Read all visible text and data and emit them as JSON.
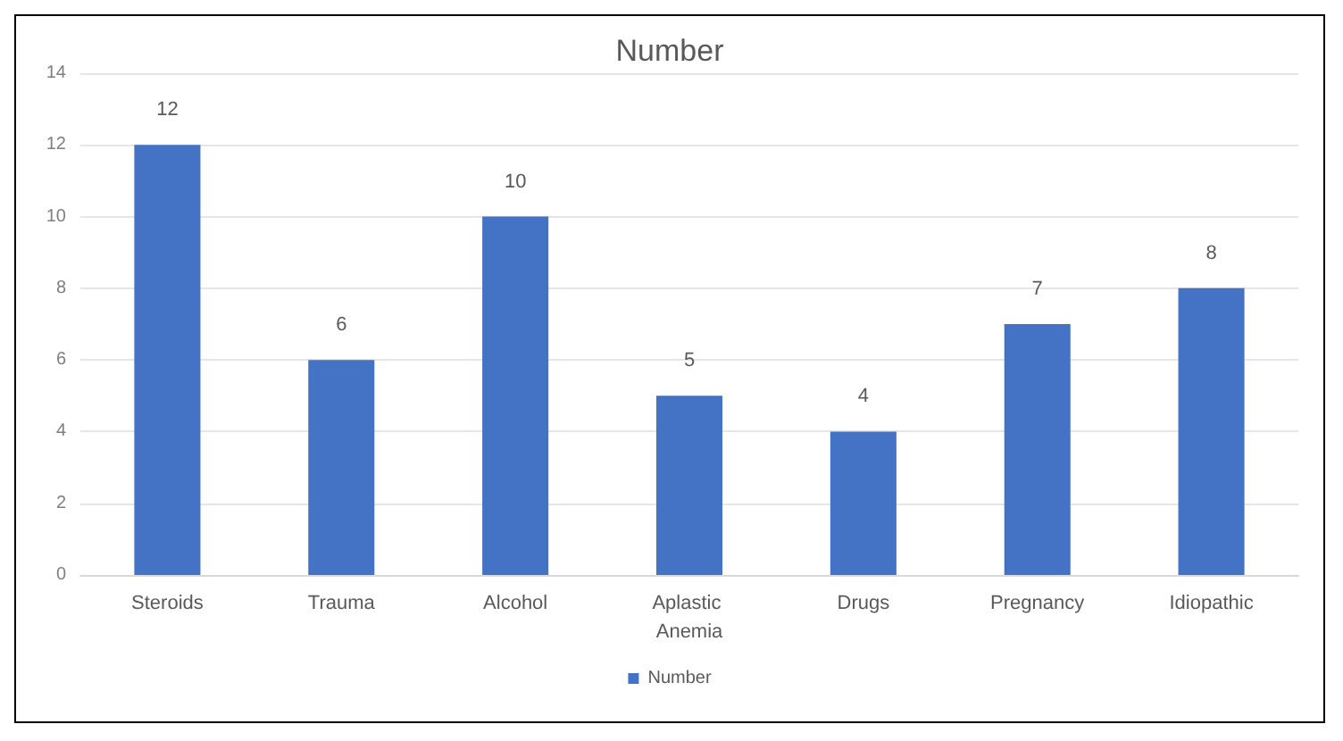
{
  "chart_data": {
    "type": "bar",
    "title": "Number",
    "categories": [
      "Steroids",
      "Trauma",
      "Alcohol",
      "Aplastic Anemia",
      "Drugs",
      "Pregnancy",
      "Idiopathic"
    ],
    "series": [
      {
        "name": "Number",
        "color": "#4472c4",
        "values": [
          12,
          6,
          10,
          5,
          4,
          7,
          8
        ]
      }
    ],
    "ylim": [
      0,
      14
    ],
    "yticks": [
      0,
      2,
      4,
      6,
      8,
      10,
      12,
      14
    ],
    "grid": "y",
    "legend": "bottom",
    "data_labels": true
  }
}
